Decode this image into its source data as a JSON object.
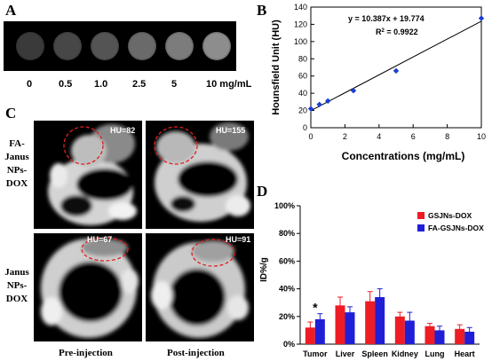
{
  "panel_a": {
    "letter": "A",
    "concentration_labels": [
      "0",
      "0.5",
      "1.0",
      "2.5",
      "5",
      "10 mg/mL"
    ],
    "well_colors": [
      "#3a3a3a",
      "#474747",
      "#545454",
      "#6a6a6a",
      "#7c7c7c",
      "#8d8d8d"
    ]
  },
  "panel_b": {
    "letter": "B",
    "equation": "y = 10.387x + 19.774",
    "r2_prefix": "R",
    "r2_sup": "2",
    "r2_value": " = 0.9922"
  },
  "panel_c": {
    "letter": "C",
    "row_labels": [
      [
        "FA-",
        "Janus",
        "NPs-",
        "DOX"
      ],
      [
        "Janus",
        "NPs-",
        "DOX"
      ]
    ],
    "col_labels": [
      "Pre-injection",
      "Post-injection"
    ],
    "hu_values": [
      "HU=82",
      "HU=155",
      "HU=67",
      "HU=91"
    ]
  },
  "panel_d": {
    "letter": "D",
    "asterisk": "*"
  },
  "chart_data": [
    {
      "type": "scatter",
      "title": "",
      "xlabel": "Concentrations (mg/mL)",
      "ylabel": "Hounsfield Unit (HU)",
      "xlim": [
        0,
        10
      ],
      "ylim": [
        0,
        140
      ],
      "xticks": [
        "0",
        "2",
        "4",
        "6",
        "8",
        "10"
      ],
      "yticks": [
        "0",
        "20",
        "40",
        "60",
        "80",
        "100",
        "120",
        "140"
      ],
      "x": [
        0,
        0.5,
        1.0,
        2.5,
        5,
        10
      ],
      "y": [
        22,
        27,
        31,
        43,
        66,
        127
      ],
      "fit_line": {
        "slope": 10.387,
        "intercept": 19.774
      },
      "point_color": "#1a3fd6",
      "line_color": "#000000"
    },
    {
      "type": "bar",
      "title": "",
      "xlabel": "",
      "ylabel": "ID%/g",
      "ylim": [
        0,
        100
      ],
      "yticks": [
        "0%",
        "20%",
        "40%",
        "60%",
        "80%",
        "100%"
      ],
      "categories": [
        "Tumor",
        "Liver",
        "Spleen",
        "Kidney",
        "Lung",
        "Heart"
      ],
      "series": [
        {
          "name": "GSJNs-DOX",
          "color": "#ee1c24",
          "values": [
            12,
            28,
            31,
            20,
            13,
            11
          ],
          "errors": [
            4,
            6,
            7,
            3,
            2,
            3
          ]
        },
        {
          "name": "FA-GSJNs-DOX",
          "color": "#1f1fd6",
          "values": [
            18,
            23,
            34,
            17,
            10,
            9
          ],
          "errors": [
            4,
            4,
            6,
            6,
            3,
            3
          ]
        }
      ],
      "legend_position": "top-right"
    }
  ]
}
